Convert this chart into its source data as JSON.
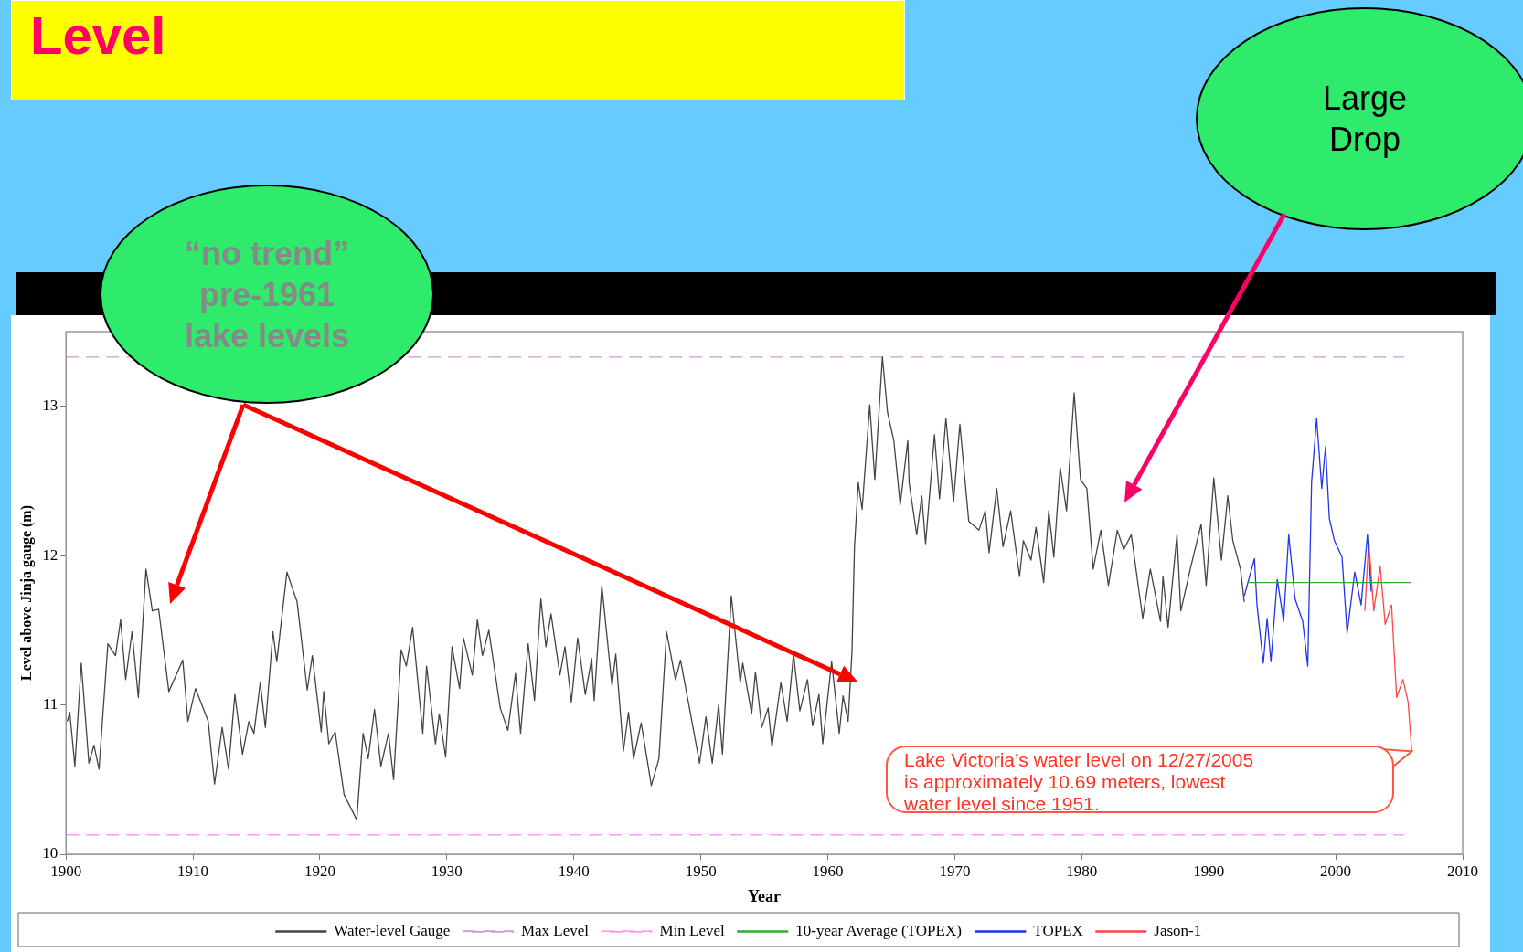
{
  "chart_data": {
    "type": "line",
    "title": "Level",
    "xlabel": "Year",
    "ylabel": "Level above Jinja gauge (m)",
    "xlim": [
      1900,
      2010
    ],
    "xticks": [
      1900,
      1910,
      1920,
      1930,
      1940,
      1950,
      1960,
      1970,
      1980,
      1990,
      2000,
      2010
    ],
    "ylim": [
      10,
      13.5
    ],
    "yticks": [
      10,
      11,
      12,
      13
    ],
    "legend": "bottom",
    "marker": "none",
    "series": [
      {
        "name": "Water-level Gauge",
        "color": "#444444",
        "x": [
          1900.1,
          1900.3,
          1900.7,
          1901.2,
          1901.8,
          1902.2,
          1902.6,
          1903.3,
          1903.9,
          1904.3,
          1904.7,
          1905.2,
          1905.7,
          1906.3,
          1906.8,
          1907.3,
          1908.1,
          1909.2,
          1909.6,
          1910.2,
          1911.2,
          1911.7,
          1912.3,
          1912.8,
          1913.3,
          1913.9,
          1914.4,
          1914.8,
          1915.3,
          1915.7,
          1916.3,
          1916.6,
          1917.4,
          1918.2,
          1919.0,
          1919.4,
          1920.1,
          1920.3,
          1920.7,
          1921.2,
          1921.9,
          1922.9,
          1923.4,
          1923.8,
          1924.3,
          1924.8,
          1925.4,
          1925.8,
          1926.4,
          1926.8,
          1927.3,
          1928.1,
          1928.4,
          1929.1,
          1929.4,
          1929.9,
          1930.4,
          1931.0,
          1931.3,
          1932.0,
          1932.4,
          1932.8,
          1933.3,
          1934.2,
          1934.8,
          1935.4,
          1935.8,
          1936.4,
          1936.9,
          1937.4,
          1937.8,
          1938.2,
          1938.9,
          1939.3,
          1939.8,
          1940.3,
          1940.9,
          1941.4,
          1941.6,
          1942.2,
          1943.0,
          1943.3,
          1943.9,
          1944.3,
          1944.7,
          1945.3,
          1946.1,
          1946.7,
          1947.3,
          1948.0,
          1948.4,
          1949.1,
          1949.9,
          1950.4,
          1950.9,
          1951.4,
          1951.7,
          1952.4,
          1953.1,
          1953.3,
          1954.0,
          1954.3,
          1954.8,
          1955.3,
          1955.6,
          1956.3,
          1956.8,
          1957.3,
          1957.8,
          1958.4,
          1958.8,
          1959.3,
          1959.6,
          1960.3,
          1960.9,
          1961.2,
          1961.6,
          1961.9,
          1962.1,
          1962.4,
          1962.7,
          1963.3,
          1963.7,
          1964.3,
          1964.7,
          1965.2,
          1965.7,
          1966.3,
          1966.4,
          1967.0,
          1967.4,
          1967.7,
          1968.4,
          1968.8,
          1969.3,
          1969.9,
          1970.4,
          1971.1,
          1971.9,
          1972.4,
          1972.7,
          1973.3,
          1973.8,
          1974.4,
          1975.1,
          1975.4,
          1976.0,
          1976.4,
          1977.0,
          1977.4,
          1977.8,
          1978.3,
          1978.8,
          1979.4,
          1979.9,
          1980.4,
          1980.9,
          1981.5,
          1982.1,
          1982.8,
          1983.3,
          1983.9,
          1984.8,
          1985.4,
          1986.2,
          1986.4,
          1986.8,
          1987.5,
          1987.8,
          1988.6,
          1989.4,
          1989.8,
          1990.4,
          1991.0,
          1991.5,
          1991.9,
          1992.5,
          1992.8
        ],
        "values": [
          10.89,
          10.95,
          10.59,
          11.28,
          10.61,
          10.73,
          10.57,
          11.41,
          11.33,
          11.57,
          11.17,
          11.49,
          11.05,
          11.91,
          11.63,
          11.64,
          11.09,
          11.3,
          10.89,
          11.11,
          10.89,
          10.47,
          10.85,
          10.57,
          11.07,
          10.67,
          10.89,
          10.81,
          11.15,
          10.85,
          11.49,
          11.29,
          11.89,
          11.69,
          11.1,
          11.33,
          10.82,
          11.09,
          10.74,
          10.82,
          10.4,
          10.23,
          10.81,
          10.64,
          10.97,
          10.59,
          10.81,
          10.5,
          11.37,
          11.26,
          11.52,
          10.81,
          11.26,
          10.74,
          10.94,
          10.65,
          11.39,
          11.11,
          11.45,
          11.2,
          11.57,
          11.33,
          11.5,
          10.98,
          10.83,
          11.21,
          10.81,
          11.41,
          11.03,
          11.71,
          11.39,
          11.61,
          11.2,
          11.39,
          11.02,
          11.45,
          11.07,
          11.31,
          11.03,
          11.8,
          11.13,
          11.34,
          10.69,
          10.95,
          10.64,
          10.88,
          10.46,
          10.64,
          11.49,
          11.17,
          11.3,
          10.98,
          10.61,
          10.92,
          10.61,
          11.0,
          10.67,
          11.73,
          11.15,
          11.28,
          10.94,
          11.22,
          10.85,
          10.98,
          10.72,
          11.15,
          10.89,
          11.34,
          10.96,
          11.17,
          10.86,
          11.07,
          10.74,
          11.29,
          10.81,
          11.06,
          10.89,
          11.35,
          12.06,
          12.49,
          12.31,
          13.01,
          12.51,
          13.33,
          12.96,
          12.77,
          12.34,
          12.77,
          12.49,
          12.14,
          12.4,
          12.08,
          12.81,
          12.38,
          12.92,
          12.36,
          12.88,
          12.23,
          12.17,
          12.3,
          12.02,
          12.45,
          12.06,
          12.3,
          11.86,
          12.1,
          11.97,
          12.19,
          11.82,
          12.3,
          11.99,
          12.59,
          12.3,
          13.09,
          12.51,
          12.45,
          11.91,
          12.17,
          11.8,
          12.17,
          12.04,
          12.14,
          11.58,
          11.91,
          11.56,
          11.86,
          11.52,
          12.14,
          11.63,
          11.93,
          12.21,
          11.8,
          12.52,
          11.97,
          12.4,
          12.1,
          11.91,
          11.69
        ]
      },
      {
        "name": "Max Level",
        "color": "#cc99dd",
        "line_style": "dashed",
        "x": [
          1900,
          2005.4
        ],
        "values": [
          13.33,
          13.33
        ]
      },
      {
        "name": "Min Level",
        "color": "#ff99ff",
        "line_style": "dashed",
        "x": [
          1900,
          2005.4
        ],
        "values": [
          10.13,
          10.13
        ]
      },
      {
        "name": "10-year Average (TOPEX)",
        "color": "#33aa33",
        "x": [
          1993,
          2005.9
        ],
        "values": [
          11.82,
          11.82
        ]
      },
      {
        "name": "TOPEX",
        "color": "#2233ee",
        "x": [
          1992.8,
          1993.6,
          1993.8,
          1994.3,
          1994.6,
          1994.9,
          1995.4,
          1995.9,
          1996.3,
          1996.8,
          1997.4,
          1997.8,
          1998.1,
          1998.5,
          1998.9,
          1999.2,
          1999.5,
          1999.9,
          2000.5,
          2000.9,
          2001.5,
          2002.0,
          2002.5,
          2002.8
        ],
        "values": [
          11.73,
          11.98,
          11.67,
          11.28,
          11.58,
          11.29,
          11.84,
          11.56,
          12.14,
          11.71,
          11.56,
          11.26,
          12.49,
          12.92,
          12.45,
          12.73,
          12.25,
          12.1,
          11.99,
          11.48,
          11.89,
          11.67,
          12.14,
          11.76
        ]
      },
      {
        "name": "Jason-1",
        "color": "#ff4444",
        "x": [
          2002.3,
          2002.6,
          2003.0,
          2003.5,
          2003.9,
          2004.4,
          2004.8,
          2005.3,
          2005.7,
          2005.99
        ],
        "values": [
          11.63,
          12.1,
          11.63,
          11.93,
          11.54,
          11.67,
          11.05,
          11.17,
          11.02,
          10.69
        ]
      }
    ],
    "annotations": [
      "“no trend” pre-1961 lake levels",
      "Large Drop",
      "Lake Victoria’s water level on 12/27/2005\nis approximately 10.69 meters, lowest\nwater level since 1951."
    ]
  }
}
